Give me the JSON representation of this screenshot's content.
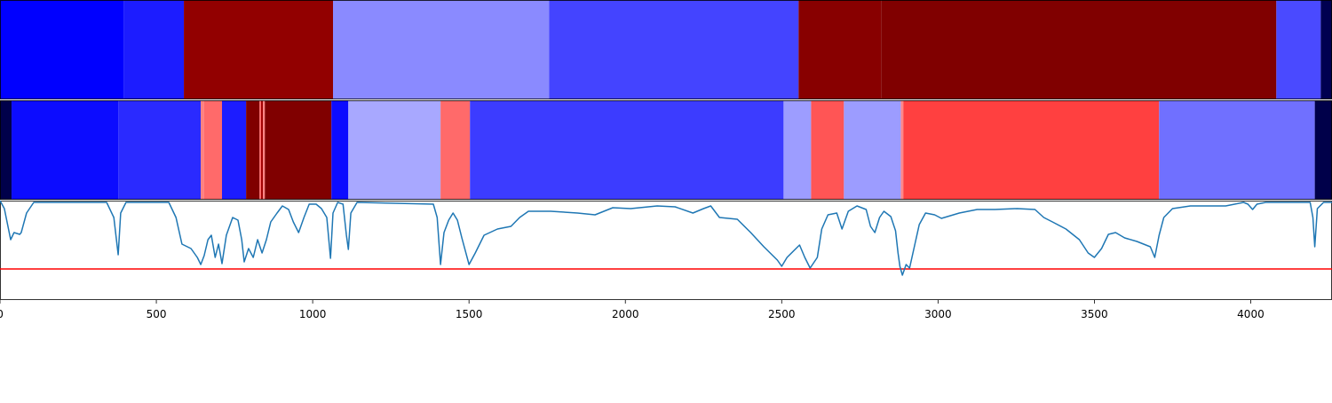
{
  "chart_data": {
    "type": "segments-line",
    "xlim": [
      0,
      4260
    ],
    "xticks": [
      0,
      500,
      1000,
      1500,
      2000,
      2500,
      3000,
      3500,
      4000
    ],
    "bars": [
      {
        "segments": [
          {
            "start": 0,
            "end": 395,
            "color": "#0000ff"
          },
          {
            "start": 395,
            "end": 588,
            "color": "#1c1cff"
          },
          {
            "start": 588,
            "end": 1065,
            "color": "#920000"
          },
          {
            "start": 1065,
            "end": 1756,
            "color": "#8a8aff"
          },
          {
            "start": 1756,
            "end": 2554,
            "color": "#4444ff"
          },
          {
            "start": 2554,
            "end": 2818,
            "color": "#880000"
          },
          {
            "start": 2818,
            "end": 4082,
            "color": "#800000"
          },
          {
            "start": 4082,
            "end": 4224,
            "color": "#4a4aff"
          },
          {
            "start": 4224,
            "end": 4260,
            "color": "#000050"
          }
        ]
      },
      {
        "segments": [
          {
            "start": 0,
            "end": 37,
            "color": "#00004a"
          },
          {
            "start": 37,
            "end": 378,
            "color": "#0c0cff"
          },
          {
            "start": 378,
            "end": 642,
            "color": "#2a2aff"
          },
          {
            "start": 642,
            "end": 653,
            "color": "#ff8080"
          },
          {
            "start": 653,
            "end": 710,
            "color": "#ff6a6a"
          },
          {
            "start": 710,
            "end": 787,
            "color": "#1c1cff"
          },
          {
            "start": 787,
            "end": 830,
            "color": "#800000"
          },
          {
            "start": 830,
            "end": 835,
            "color": "#ff6a6a"
          },
          {
            "start": 835,
            "end": 841,
            "color": "#a00000"
          },
          {
            "start": 841,
            "end": 847,
            "color": "#ff8080"
          },
          {
            "start": 847,
            "end": 1060,
            "color": "#800000"
          },
          {
            "start": 1060,
            "end": 1114,
            "color": "#0c0cff"
          },
          {
            "start": 1114,
            "end": 1409,
            "color": "#a8a8ff"
          },
          {
            "start": 1409,
            "end": 1503,
            "color": "#ff6a6a"
          },
          {
            "start": 1503,
            "end": 2506,
            "color": "#3c3cff"
          },
          {
            "start": 2506,
            "end": 2594,
            "color": "#9d9dff"
          },
          {
            "start": 2594,
            "end": 2699,
            "color": "#ff5555"
          },
          {
            "start": 2699,
            "end": 2881,
            "color": "#9c9cff"
          },
          {
            "start": 2881,
            "end": 2889,
            "color": "#ff8888"
          },
          {
            "start": 2889,
            "end": 3707,
            "color": "#ff4040"
          },
          {
            "start": 3707,
            "end": 4205,
            "color": "#7070ff"
          },
          {
            "start": 4205,
            "end": 4260,
            "color": "#00004a"
          }
        ]
      }
    ],
    "line": {
      "color": "#1f77b4",
      "ylim": [
        0,
        112
      ],
      "x": [
        0,
        14,
        34,
        45,
        63,
        68,
        85,
        108,
        341,
        364,
        378,
        386,
        403,
        540,
        563,
        582,
        611,
        631,
        642,
        653,
        665,
        676,
        688,
        699,
        710,
        724,
        744,
        761,
        773,
        781,
        795,
        810,
        824,
        838,
        852,
        866,
        886,
        903,
        923,
        938,
        955,
        972,
        989,
        1011,
        1028,
        1045,
        1057,
        1065,
        1080,
        1097,
        1108,
        1114,
        1122,
        1142,
        1386,
        1398,
        1409,
        1420,
        1435,
        1449,
        1463,
        1477,
        1500,
        1520,
        1548,
        1591,
        1634,
        1662,
        1690,
        1761,
        1847,
        1903,
        1960,
        2017,
        2102,
        2159,
        2216,
        2250,
        2273,
        2301,
        2358,
        2401,
        2443,
        2486,
        2500,
        2517,
        2557,
        2574,
        2591,
        2614,
        2628,
        2648,
        2676,
        2693,
        2713,
        2741,
        2770,
        2784,
        2798,
        2813,
        2827,
        2849,
        2864,
        2872,
        2878,
        2886,
        2898,
        2909,
        2926,
        2940,
        2960,
        2989,
        3011,
        3068,
        3125,
        3182,
        3253,
        3310,
        3338,
        3366,
        3409,
        3452,
        3480,
        3500,
        3523,
        3545,
        3568,
        3597,
        3636,
        3679,
        3693,
        3707,
        3722,
        3750,
        3807,
        3920,
        3977,
        3991,
        4006,
        4020,
        4048,
        4190,
        4199,
        4205,
        4213,
        4233,
        4260
      ],
      "values": [
        112,
        103,
        68,
        76,
        74,
        76,
        98,
        110,
        110,
        93,
        51,
        98,
        110,
        110,
        93,
        63,
        58,
        48,
        40,
        50,
        68,
        73,
        48,
        63,
        41,
        73,
        93,
        90,
        68,
        43,
        58,
        48,
        68,
        53,
        68,
        88,
        98,
        106,
        102,
        88,
        76,
        93,
        108,
        108,
        103,
        93,
        47,
        98,
        110,
        108,
        73,
        57,
        98,
        110,
        108,
        93,
        40,
        76,
        90,
        98,
        90,
        70,
        40,
        53,
        73,
        80,
        83,
        93,
        100,
        100,
        98,
        96,
        104,
        103,
        106,
        105,
        98,
        103,
        106,
        93,
        91,
        76,
        60,
        45,
        38,
        48,
        62,
        48,
        36,
        48,
        80,
        96,
        98,
        80,
        100,
        106,
        102,
        83,
        76,
        93,
        100,
        94,
        78,
        53,
        38,
        28,
        40,
        36,
        63,
        85,
        98,
        96,
        92,
        98,
        102,
        102,
        103,
        102,
        93,
        88,
        80,
        68,
        53,
        48,
        58,
        74,
        76,
        70,
        66,
        60,
        48,
        73,
        93,
        103,
        106,
        106,
        110,
        108,
        102,
        108,
        110,
        110,
        93,
        60,
        103,
        110,
        110
      ],
      "threshold": 35,
      "threshold_color": "#ff0000"
    }
  }
}
